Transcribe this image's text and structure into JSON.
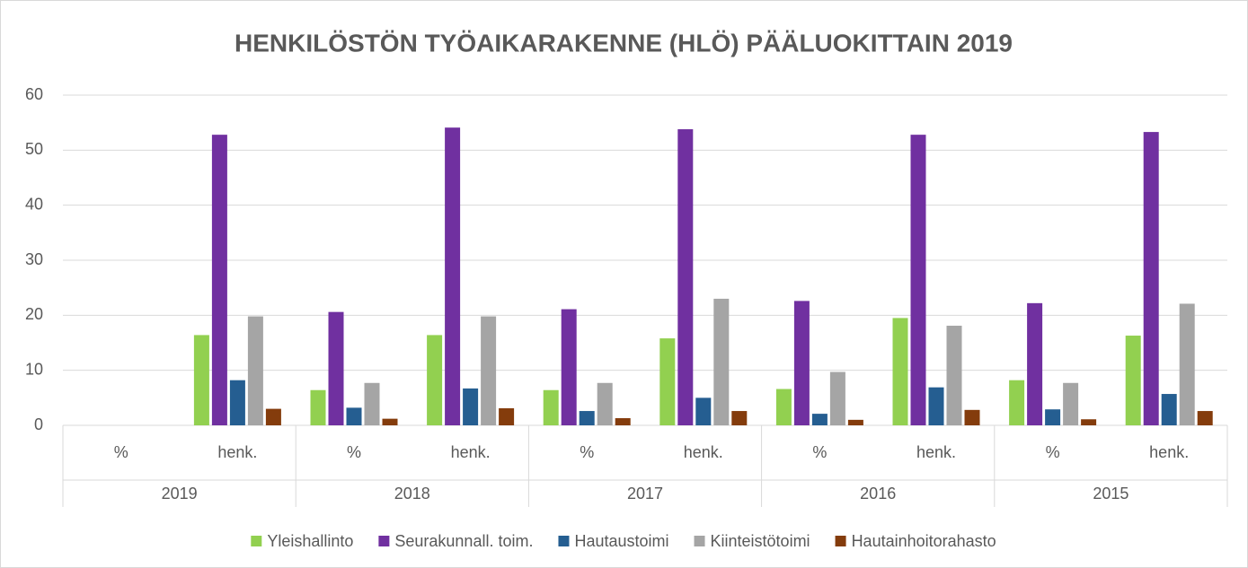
{
  "chart_data": {
    "type": "bar",
    "title": "HENKILÖSTÖN TYÖAIKARAKENNE (HLÖ) PÄÄLUOKITTAIN 2019",
    "groups": [
      "2019",
      "2018",
      "2017",
      "2016",
      "2015"
    ],
    "categories": [
      "%",
      "henk.",
      "%",
      "henk.",
      "%",
      "henk.",
      "%",
      "henk.",
      "%",
      "henk."
    ],
    "series": [
      {
        "name": "Yleishallinto",
        "color": "#92d050",
        "values": [
          null,
          16.4,
          6.4,
          16.4,
          6.4,
          15.8,
          6.6,
          19.5,
          8.2,
          16.3
        ]
      },
      {
        "name": "Seurakunnall. toim.",
        "color": "#7030a0",
        "values": [
          null,
          52.8,
          20.6,
          54.1,
          21.1,
          53.8,
          22.6,
          52.8,
          22.2,
          53.3
        ]
      },
      {
        "name": "Hautaustoimi",
        "color": "#255e91",
        "values": [
          null,
          8.2,
          3.2,
          6.7,
          2.6,
          5.0,
          2.1,
          6.9,
          2.9,
          5.7
        ]
      },
      {
        "name": "Kiinteistötoimi",
        "color": "#a5a5a5",
        "values": [
          null,
          19.8,
          7.7,
          19.8,
          7.7,
          23.0,
          9.7,
          18.1,
          7.7,
          22.1
        ]
      },
      {
        "name": "Hautainhoitorahasto",
        "color": "#843c0c",
        "values": [
          null,
          3.0,
          1.2,
          3.1,
          1.3,
          2.6,
          1.0,
          2.8,
          1.1,
          2.6
        ]
      }
    ],
    "ylim": [
      0,
      60
    ],
    "yticks": [
      0,
      10,
      20,
      30,
      40,
      50,
      60
    ],
    "grid": true,
    "legend": "bottom"
  }
}
